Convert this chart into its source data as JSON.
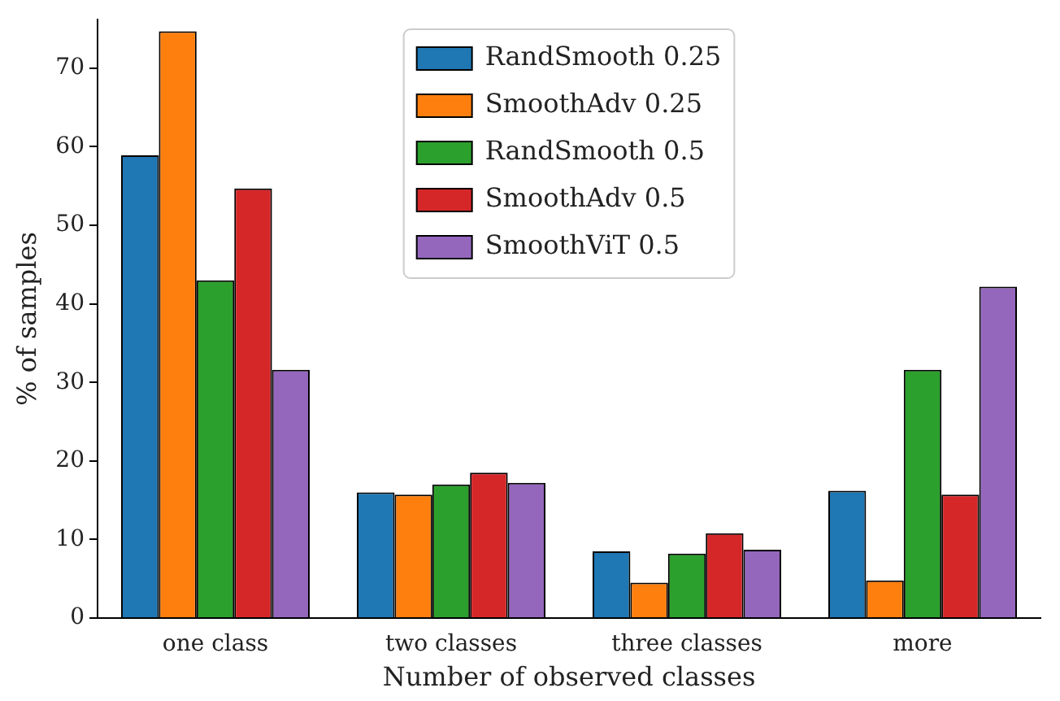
{
  "chart_data": {
    "type": "bar",
    "xlabel": "Number of observed classes",
    "ylabel": "% of samples",
    "categories": [
      "one class",
      "two classes",
      "three classes",
      "more"
    ],
    "series": [
      {
        "name": "RandSmooth 0.25",
        "color": "#1f77b4",
        "values": [
          58.9,
          16.0,
          8.5,
          16.2
        ]
      },
      {
        "name": "SmoothAdv 0.25",
        "color": "#ff7f0e",
        "values": [
          74.7,
          15.7,
          4.5,
          4.8
        ]
      },
      {
        "name": "RandSmooth 0.5",
        "color": "#2ca02c",
        "values": [
          43.0,
          17.0,
          8.2,
          31.6
        ]
      },
      {
        "name": "SmoothAdv 0.5",
        "color": "#d62728",
        "values": [
          54.7,
          18.5,
          10.8,
          15.7
        ]
      },
      {
        "name": "SmoothViT 0.5",
        "color": "#9467bd",
        "values": [
          31.6,
          17.2,
          8.7,
          42.2
        ]
      }
    ],
    "ylim": [
      0,
      76.2
    ],
    "yticks": [
      0,
      10,
      20,
      30,
      40,
      50,
      60,
      70
    ],
    "grid": false,
    "legend": "top"
  }
}
